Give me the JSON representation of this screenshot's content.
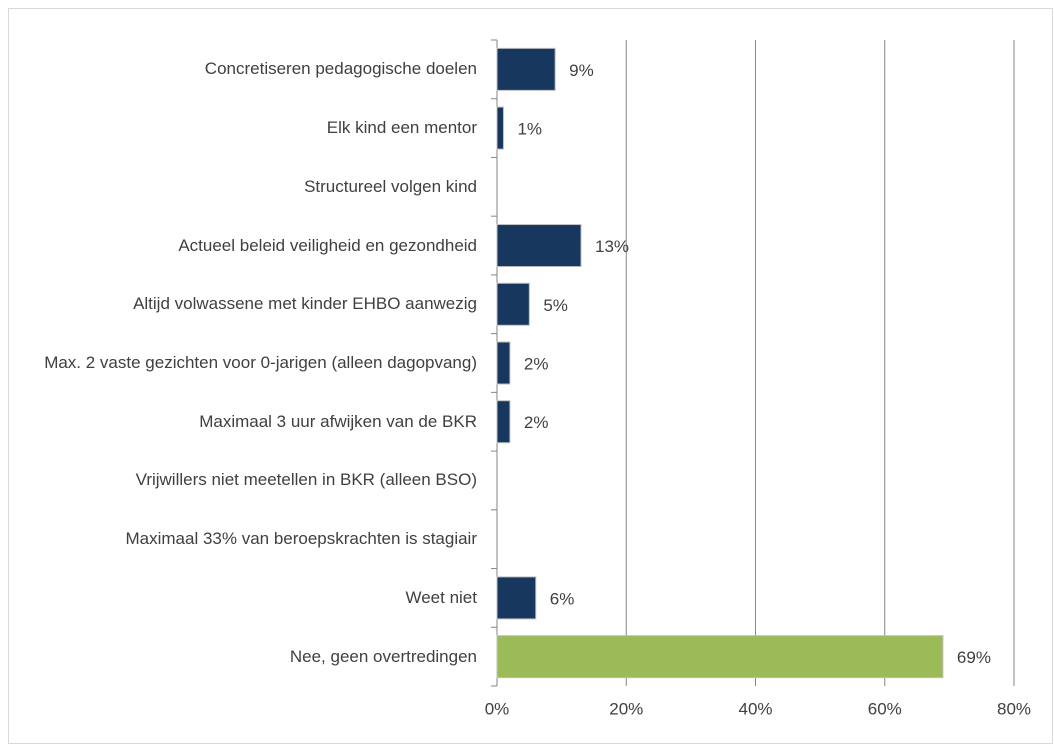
{
  "chart_data": {
    "type": "bar",
    "orientation": "horizontal",
    "categories": [
      "Concretiseren pedagogische doelen",
      "Elk kind een mentor",
      "Structureel volgen kind",
      "Actueel beleid veiligheid en gezondheid",
      "Altijd volwassene met kinder EHBO aanwezig",
      "Max. 2 vaste gezichten voor 0-jarigen (alleen dagopvang)",
      "Maximaal 3 uur afwijken van de BKR",
      "Vrijwillers  niet meetellen in BKR (alleen BSO)",
      "Maximaal 33% van beroepskrachten is stagiair",
      "Weet niet",
      "Nee, geen overtredingen"
    ],
    "values": [
      9,
      1,
      null,
      13,
      5,
      2,
      2,
      null,
      null,
      6,
      69
    ],
    "value_labels": [
      "9%",
      "1%",
      null,
      "13%",
      "5%",
      "2%",
      "2%",
      null,
      null,
      "6%",
      "69%"
    ],
    "colors": [
      "#17375e",
      "#17375e",
      "#17375e",
      "#17375e",
      "#17375e",
      "#17375e",
      "#17375e",
      "#17375e",
      "#17375e",
      "#17375e",
      "#9bbb59"
    ],
    "xlim": [
      0,
      80
    ],
    "xticks": [
      {
        "value": 0,
        "label": "0%"
      },
      {
        "value": 20,
        "label": "20%"
      },
      {
        "value": 40,
        "label": "40%"
      },
      {
        "value": 60,
        "label": "60%"
      },
      {
        "value": 80,
        "label": "80%"
      }
    ],
    "grid": true
  }
}
